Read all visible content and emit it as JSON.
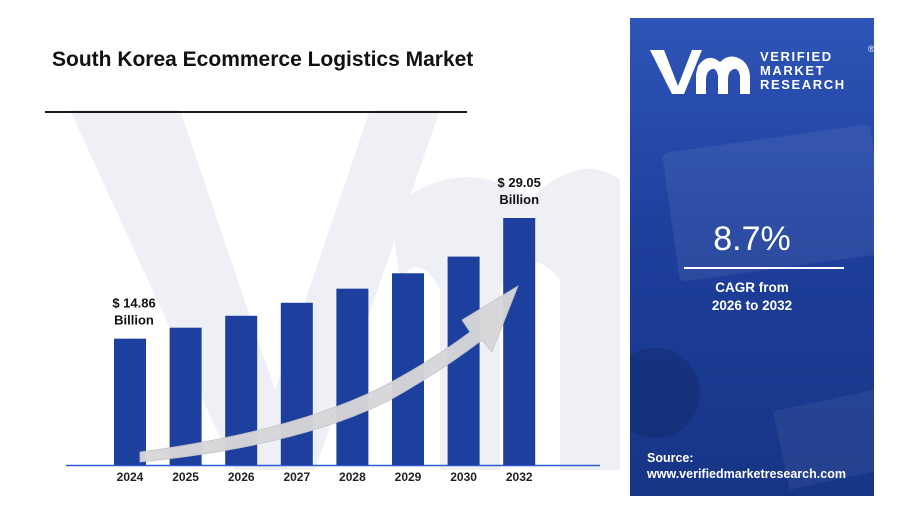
{
  "title": "South Korea Ecommerce Logistics Market",
  "brand": {
    "line1": "VERIFIED",
    "line2": "MARKET",
    "line3": "RESEARCH",
    "registered": "®"
  },
  "cagr": {
    "value": "8.7%",
    "label_line1": "CAGR from",
    "label_line2": "2026 to 2032"
  },
  "source": {
    "label": "Source:",
    "url": "www.verifiedmarketresearch.com"
  },
  "colors": {
    "bar": "#1d3f9e",
    "panel": "#1e3f9c",
    "axis": "#2c5bd6",
    "arrow": "#d7d7d9"
  },
  "chart_data": {
    "type": "bar",
    "categories": [
      "2024",
      "2025",
      "2026",
      "2027",
      "2028",
      "2029",
      "2030",
      "2032"
    ],
    "values": [
      14.86,
      16.15,
      17.55,
      19.08,
      20.74,
      22.55,
      24.51,
      29.05
    ],
    "unit": "Billion",
    "annotations": [
      {
        "category": "2024",
        "line1": "$ 14.86",
        "line2": "Billion"
      },
      {
        "category": "2032",
        "line1": "$ 29.05",
        "line2": "Billion"
      }
    ],
    "trend_arrow": true,
    "grid": false,
    "ylim": [
      0,
      30
    ]
  }
}
